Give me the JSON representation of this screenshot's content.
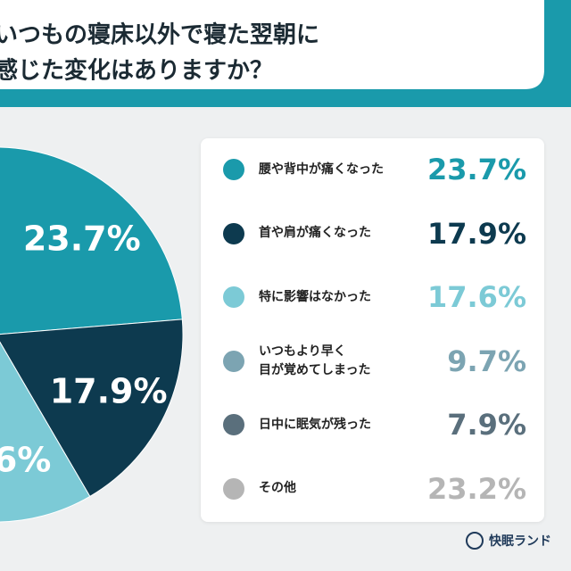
{
  "chart_data": {
    "type": "pie",
    "title": [
      "いつもの寝床以外で寝た翌朝に",
      "感じた変化はありますか？"
    ],
    "categories": [
      "腰や背中が痛くなった",
      "首や肩が痛くなった",
      "特に影響はなかった",
      "いつもより早く\n目が覚めてしまった",
      "日中に眠気が残った",
      "その他"
    ],
    "values": [
      23.7,
      17.9,
      17.6,
      9.7,
      7.9,
      23.2
    ],
    "value_labels": [
      "23.7%",
      "17.9%",
      "17.6%",
      "9.7%",
      "7.9%",
      "23.2%"
    ],
    "colors": [
      "#1a9aab",
      "#0d3a4f",
      "#7ccad6",
      "#7ca4b2",
      "#5a6f7c",
      "#b5b5b5"
    ],
    "legend": "right",
    "brand": "快眠ランド"
  }
}
